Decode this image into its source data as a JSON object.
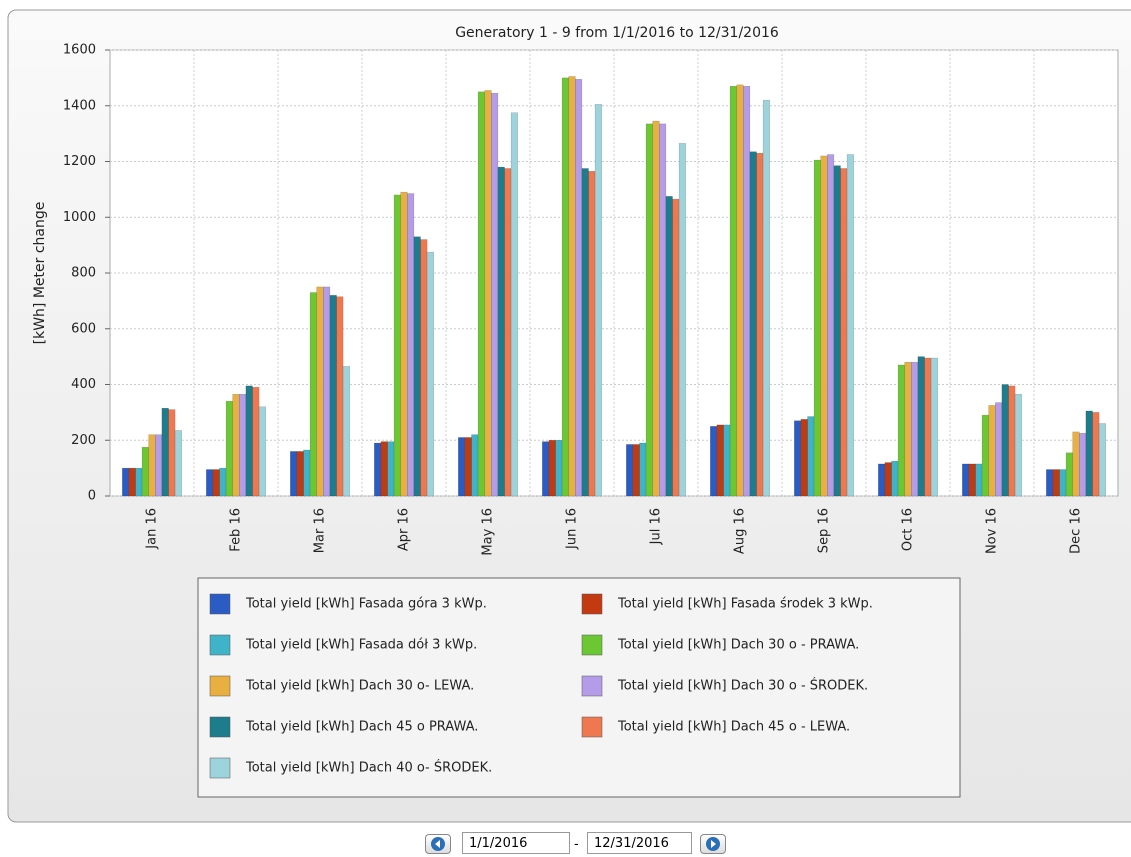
{
  "chart_data": {
    "type": "bar",
    "title": "Generatory 1 - 9 from 1/1/2016 to 12/31/2016",
    "y_label": "[kWh] Meter change",
    "categories": [
      "Jan 16",
      "Feb 16",
      "Mar 16",
      "Apr 16",
      "May 16",
      "Jun 16",
      "Jul 16",
      "Aug 16",
      "Sep 16",
      "Oct 16",
      "Nov 16",
      "Dec 16"
    ],
    "series": [
      {
        "name": "Total yield [kWh] Fasada góra 3 kWp.",
        "color": "#2a5cc4",
        "values": [
          100,
          95,
          160,
          190,
          210,
          195,
          185,
          250,
          270,
          115,
          115,
          95
        ]
      },
      {
        "name": "Total yield [kWh] Fasada środek 3 kWp.",
        "color": "#c33a10",
        "values": [
          100,
          95,
          160,
          195,
          210,
          200,
          185,
          255,
          275,
          120,
          115,
          95
        ]
      },
      {
        "name": "Total yield [kWh] Fasada dół 3 kWp.",
        "color": "#3fb4c8",
        "values": [
          100,
          100,
          165,
          195,
          220,
          200,
          190,
          255,
          285,
          125,
          115,
          95
        ]
      },
      {
        "name": "Total yield [kWh] Dach 30 o - PRAWA.",
        "color": "#6cc832",
        "values": [
          175,
          340,
          730,
          1080,
          1450,
          1500,
          1335,
          1470,
          1205,
          470,
          290,
          155
        ]
      },
      {
        "name": "Total yield [kWh] Dach 30 o- LEWA.",
        "color": "#e8b040",
        "values": [
          220,
          365,
          750,
          1090,
          1455,
          1505,
          1345,
          1475,
          1220,
          480,
          325,
          230
        ]
      },
      {
        "name": "Total yield [kWh] Dach 30 o - ŚRODEK.",
        "color": "#b49ce8",
        "values": [
          220,
          365,
          750,
          1085,
          1445,
          1495,
          1335,
          1470,
          1225,
          480,
          335,
          225
        ]
      },
      {
        "name": "Total yield [kWh] Dach 45 o PRAWA.",
        "color": "#1d7d8c",
        "values": [
          315,
          395,
          720,
          930,
          1180,
          1175,
          1075,
          1235,
          1185,
          500,
          400,
          305
        ]
      },
      {
        "name": "Total yield [kWh] Dach 45 o - LEWA.",
        "color": "#f07850",
        "values": [
          310,
          390,
          715,
          920,
          1175,
          1165,
          1065,
          1230,
          1175,
          495,
          395,
          300
        ]
      },
      {
        "name": "Total yield [kWh] Dach 40 o- ŚRODEK.",
        "color": "#9dd4dc",
        "values": [
          235,
          320,
          465,
          875,
          1375,
          1405,
          1265,
          1420,
          1225,
          495,
          365,
          260
        ]
      }
    ],
    "ylim": [
      0,
      1600
    ],
    "yticks": [
      0,
      200,
      400,
      600,
      800,
      1000,
      1200,
      1400,
      1600
    ],
    "grid": true,
    "legend": "bottom"
  },
  "date_range": {
    "from": "1/1/2016",
    "separator": "-",
    "to": "12/31/2016"
  }
}
